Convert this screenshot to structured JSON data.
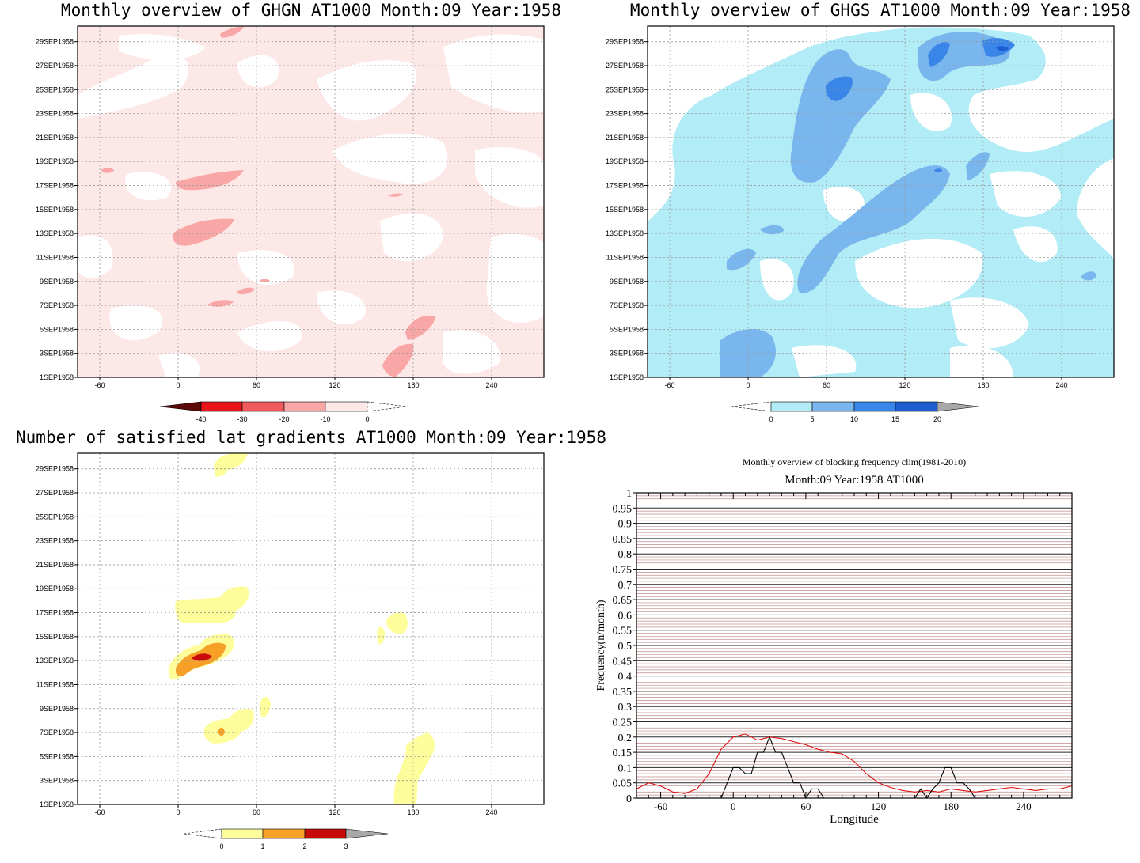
{
  "panels": {
    "ghgn": {
      "title": "Monthly overview of GHGN AT1000 Month:09 Year:1958",
      "colorbar_labels": [
        "-40",
        "-30",
        "-20",
        "-10",
        "0"
      ],
      "colors": [
        "#5a0a08",
        "#e8141a",
        "#f05a5e",
        "#f8a6a6",
        "#fde8e8"
      ]
    },
    "ghgs": {
      "title": "Monthly overview of GHGS AT1000 Month:09 Year:1958",
      "colorbar_labels": [
        "0",
        "5",
        "10",
        "15",
        "20"
      ],
      "colors": [
        "#b2ecf6",
        "#7ab6ee",
        "#3a86e8",
        "#1c5ed2",
        "#a8a8a8"
      ]
    },
    "grad": {
      "title": "Number of satisfied lat gradients AT1000 Month:09 Year:1958",
      "colorbar_labels": [
        "0",
        "1",
        "2",
        "3"
      ],
      "colors": [
        "#fdfd9c",
        "#f6a028",
        "#c80a0a",
        "#a8a8a8"
      ]
    }
  },
  "y_ticks": [
    "29SEP1958",
    "27SEP1958",
    "25SEP1958",
    "23SEP1958",
    "21SEP1958",
    "19SEP1958",
    "17SEP1958",
    "15SEP1958",
    "13SEP1958",
    "11SEP1958",
    "9SEP1958",
    "7SEP1958",
    "5SEP1958",
    "3SEP1958",
    "1SEP1958"
  ],
  "x_ticks": [
    "-60",
    "0",
    "60",
    "120",
    "180",
    "240"
  ],
  "blocking": {
    "title_line1": "Monthly overview of blocking frequency clim(1981-2010)",
    "title_line2": "Month:09 Year:1958  AT1000",
    "xlabel": "Longitude",
    "ylabel": "Frequency(n/month)",
    "y_tick_labels": [
      "1",
      "0.95",
      "0.9",
      "0.85",
      "0.8",
      "0.75",
      "0.7",
      "0.65",
      "0.6",
      "0.55",
      "0.5",
      "0.45",
      "0.4",
      "0.35",
      "0.3",
      "0.25",
      "0.2",
      "0.15",
      "0.1",
      "0.05",
      "0"
    ],
    "x_tick_labels": [
      "-60",
      "0",
      "60",
      "120",
      "180",
      "240"
    ]
  },
  "chart_data": [
    {
      "type": "heatmap",
      "title": "Monthly overview of GHGN AT1000 Month:09 Year:1958",
      "x_ticks": [
        -60,
        0,
        60,
        120,
        180,
        240
      ],
      "xlim": [
        -77,
        280
      ],
      "y_ticks": [
        "1SEP1958",
        "3SEP1958",
        "5SEP1958",
        "7SEP1958",
        "9SEP1958",
        "11SEP1958",
        "13SEP1958",
        "15SEP1958",
        "17SEP1958",
        "19SEP1958",
        "21SEP1958",
        "23SEP1958",
        "25SEP1958",
        "27SEP1958",
        "29SEP1958"
      ],
      "levels": [
        -40,
        -30,
        -20,
        -10,
        0
      ],
      "features": [
        {
          "level": -10,
          "lon": [
            -77,
            280
          ],
          "day": [
            1,
            30
          ],
          "description_value": "background -10..0"
        },
        {
          "level": -20,
          "lon": [
            0,
            40
          ],
          "day": [
            12.8,
            14.2
          ]
        },
        {
          "level": -20,
          "lon": [
            -5,
            50
          ],
          "day": [
            16.6,
            17.4
          ]
        },
        {
          "level": -20,
          "lon": [
            155,
            195
          ],
          "day": [
            1.5,
            4.5
          ]
        }
      ]
    },
    {
      "type": "heatmap",
      "title": "Monthly overview of GHGS AT1000 Month:09 Year:1958",
      "x_ticks": [
        -60,
        0,
        60,
        120,
        180,
        240
      ],
      "xlim": [
        -77,
        280
      ],
      "levels": [
        0,
        5,
        10,
        15,
        20
      ],
      "features": [
        {
          "level": 5,
          "lon": [
            -40,
            260
          ],
          "day": [
            1,
            30
          ]
        },
        {
          "level": 10,
          "lon": [
            20,
            80
          ],
          "day": [
            17,
            29
          ]
        },
        {
          "level": 10,
          "lon": [
            40,
            160
          ],
          "day": [
            7,
            18
          ]
        },
        {
          "level": 15,
          "lon": [
            55,
            80
          ],
          "day": [
            24.5,
            26
          ]
        },
        {
          "level": 15,
          "lon": [
            135,
            200
          ],
          "day": [
            27,
            30
          ]
        }
      ]
    },
    {
      "type": "heatmap",
      "title": "Number of satisfied lat gradients AT1000 Month:09 Year:1958",
      "x_ticks": [
        -60,
        0,
        60,
        120,
        180,
        240
      ],
      "xlim": [
        -77,
        280
      ],
      "levels": [
        0,
        1,
        2,
        3
      ],
      "features": [
        {
          "level": 1,
          "lon": [
            -5,
            55
          ],
          "day": [
            16,
            19.5
          ]
        },
        {
          "level": 1,
          "lon": [
            -5,
            45
          ],
          "day": [
            11.5,
            15.5
          ]
        },
        {
          "level": 2,
          "lon": [
            -5,
            35
          ],
          "day": [
            11.8,
            14.3
          ]
        },
        {
          "level": 3,
          "lon": [
            10,
            25
          ],
          "day": [
            12.8,
            13.3
          ]
        },
        {
          "level": 1,
          "lon": [
            15,
            55
          ],
          "day": [
            6.5,
            9
          ]
        },
        {
          "level": 1,
          "lon": [
            160,
            195
          ],
          "day": [
            1,
            6.5
          ]
        },
        {
          "level": 1,
          "lon": [
            155,
            175
          ],
          "day": [
            14.5,
            16.5
          ]
        }
      ]
    },
    {
      "type": "line",
      "title": "Monthly overview of blocking frequency clim(1981-2010)",
      "subtitle": "Month:09 Year:1958  AT1000",
      "xlabel": "Longitude",
      "ylabel": "Frequency(n/month)",
      "xlim": [
        -80,
        280
      ],
      "ylim": [
        0,
        1
      ],
      "series": [
        {
          "color": "#e01010",
          "x": [
            -80,
            -70,
            -60,
            -50,
            -40,
            -30,
            -20,
            -10,
            0,
            10,
            20,
            30,
            40,
            50,
            60,
            70,
            80,
            90,
            100,
            110,
            120,
            130,
            140,
            150,
            160,
            170,
            180,
            190,
            200,
            210,
            220,
            230,
            240,
            250,
            260,
            270,
            280
          ],
          "y": [
            0.03,
            0.05,
            0.04,
            0.02,
            0.015,
            0.03,
            0.08,
            0.16,
            0.2,
            0.21,
            0.19,
            0.2,
            0.195,
            0.185,
            0.175,
            0.16,
            0.15,
            0.145,
            0.12,
            0.08,
            0.05,
            0.035,
            0.025,
            0.02,
            0.025,
            0.02,
            0.03,
            0.025,
            0.02,
            0.025,
            0.03,
            0.035,
            0.03,
            0.025,
            0.03,
            0.03,
            0.04
          ]
        },
        {
          "color": "#000000",
          "x": [
            -80,
            -10,
            -5,
            0,
            5,
            10,
            15,
            20,
            25,
            30,
            35,
            40,
            45,
            50,
            55,
            60,
            65,
            70,
            75,
            150,
            155,
            160,
            165,
            170,
            175,
            180,
            185,
            190,
            195,
            200,
            280
          ],
          "y": [
            0,
            0,
            0.05,
            0.1,
            0.1,
            0.08,
            0.08,
            0.15,
            0.15,
            0.2,
            0.15,
            0.15,
            0.1,
            0.05,
            0.05,
            0.0,
            0.03,
            0.03,
            0.0,
            0.0,
            0.03,
            0.0,
            0.03,
            0.05,
            0.1,
            0.1,
            0.05,
            0.05,
            0.03,
            0.0,
            0
          ]
        }
      ]
    }
  ]
}
